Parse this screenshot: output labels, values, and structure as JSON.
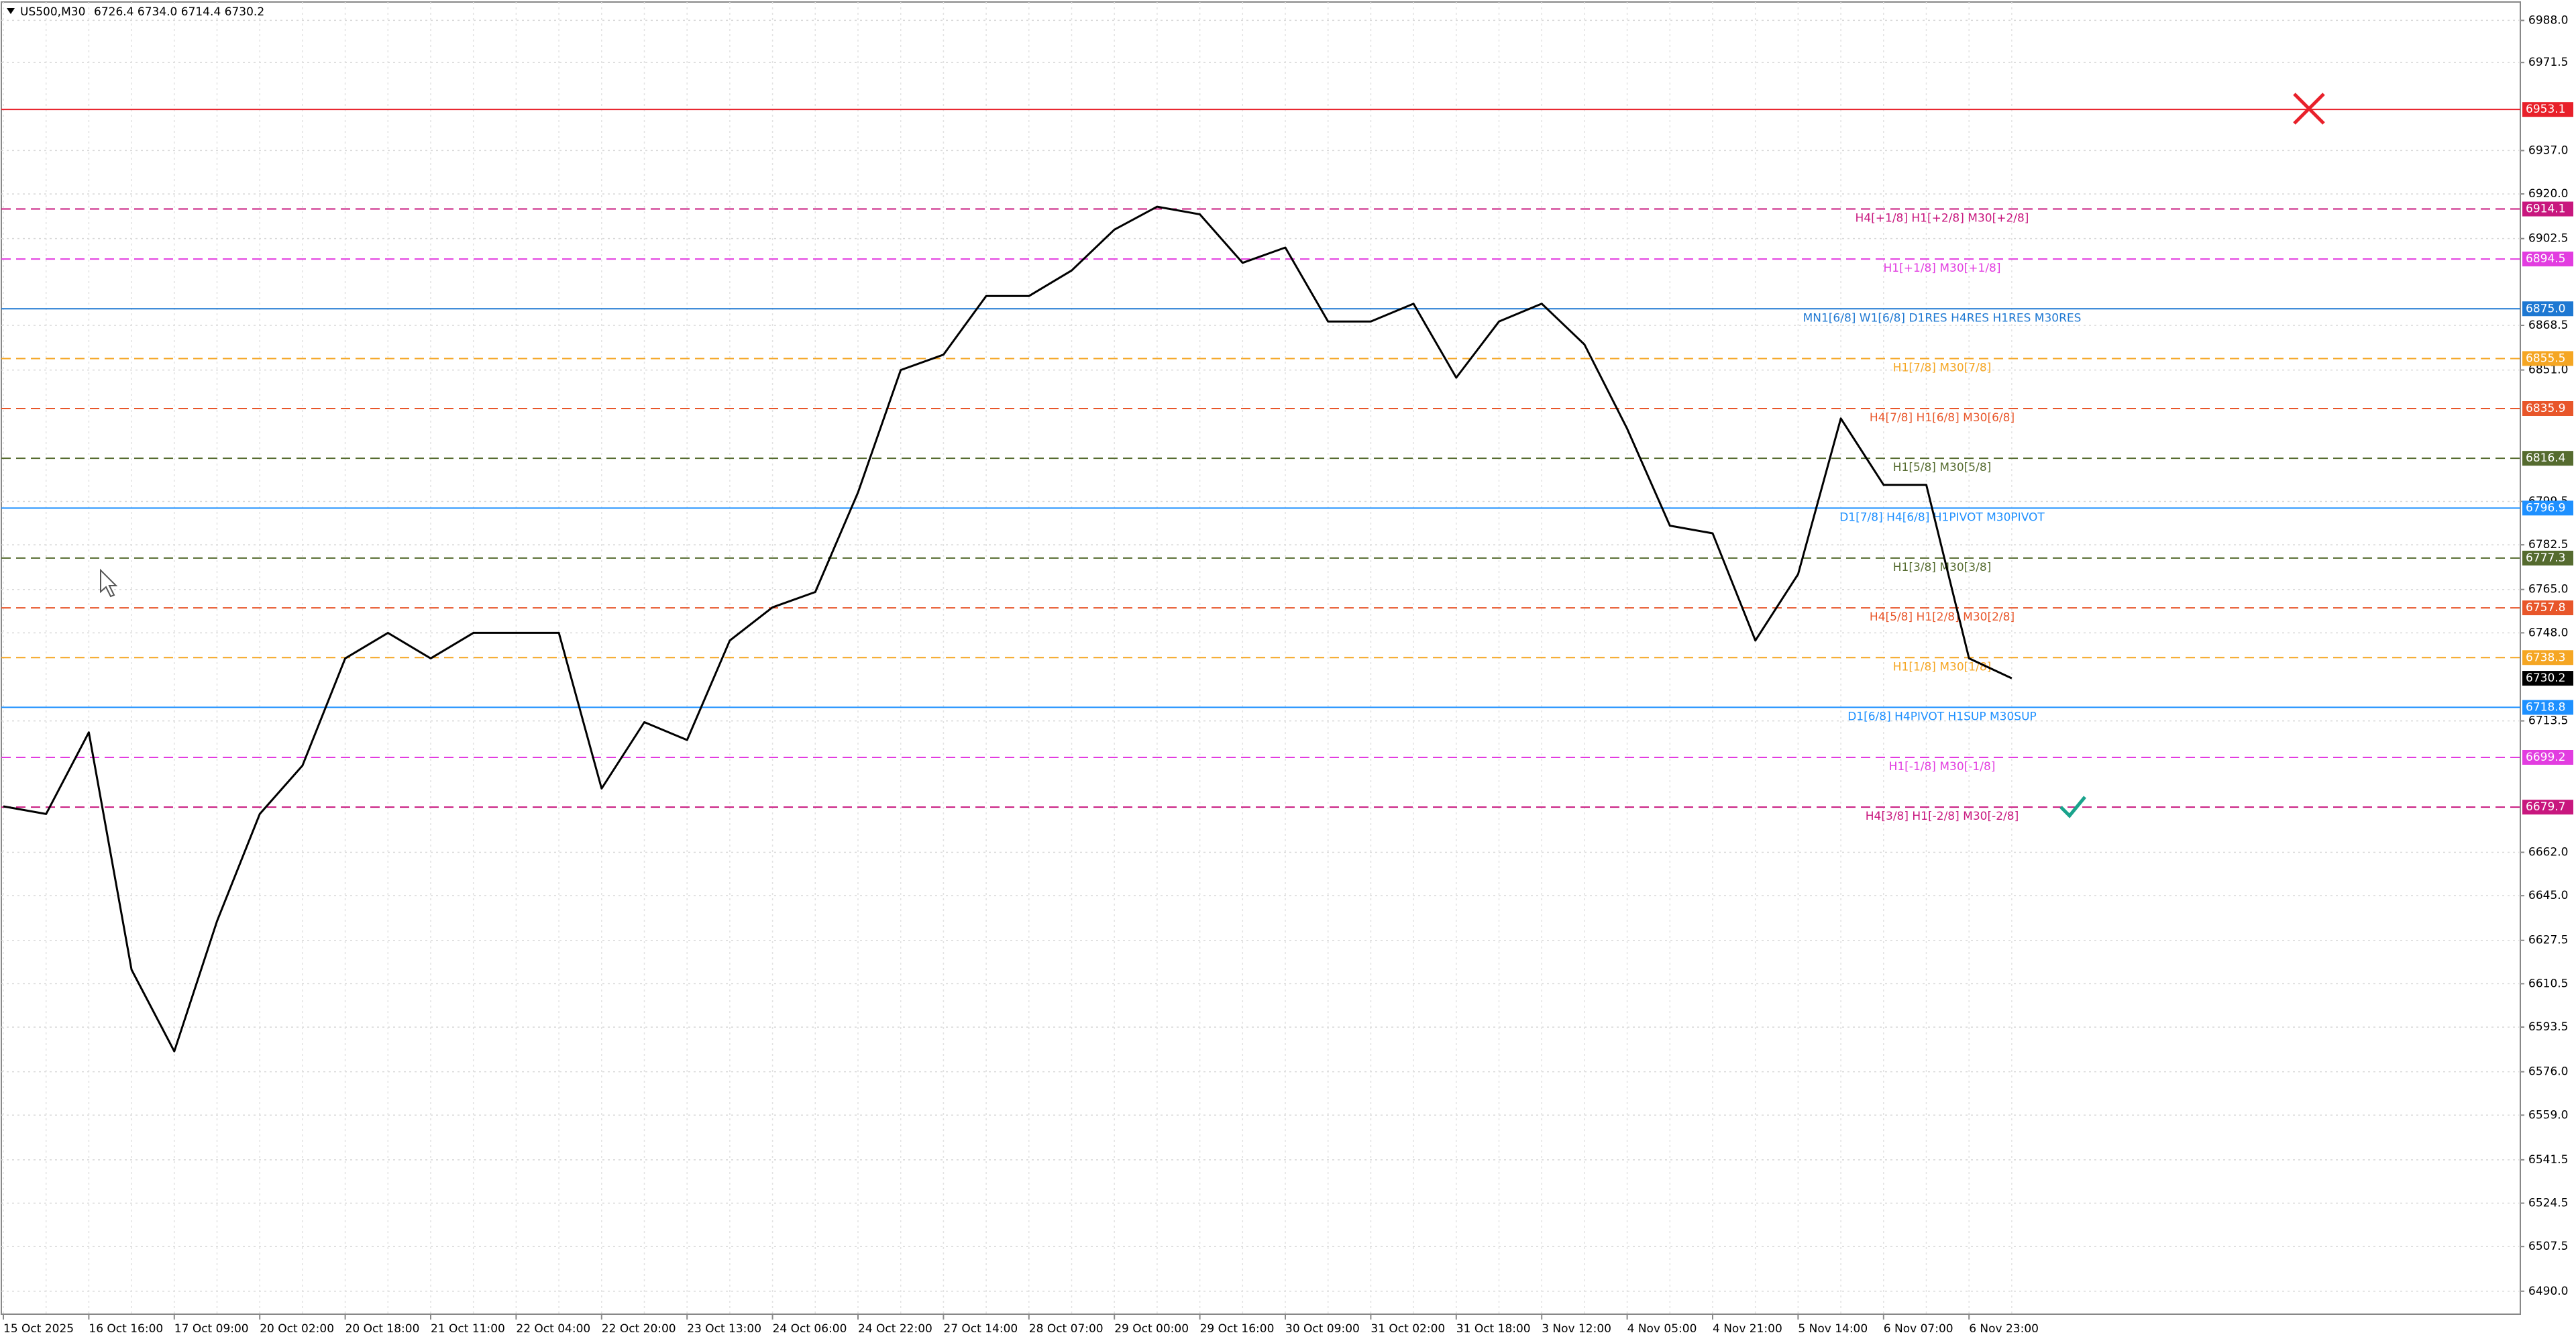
{
  "chart_data": {
    "type": "line",
    "title": "US500,M30",
    "ohlc_text": "6726.4 6734.0 6714.4 6730.2",
    "categories": [
      "15 Oct 2025",
      null,
      "16 Oct 16:00",
      null,
      "17 Oct 09:00",
      null,
      "20 Oct 02:00",
      null,
      "20 Oct 18:00",
      null,
      "21 Oct 11:00",
      null,
      "22 Oct 04:00",
      null,
      "22 Oct 20:00",
      null,
      "23 Oct 13:00",
      null,
      "24 Oct 06:00",
      null,
      "24 Oct 22:00",
      null,
      "27 Oct 14:00",
      null,
      "28 Oct 07:00",
      null,
      "29 Oct 00:00",
      null,
      "29 Oct 16:00",
      null,
      "30 Oct 09:00",
      null,
      "31 Oct 02:00",
      null,
      "31 Oct 18:00",
      null,
      "3 Nov 12:00",
      null,
      "4 Nov 05:00",
      null,
      "4 Nov 21:00",
      null,
      "5 Nov 14:00",
      null,
      "6 Nov 07:00",
      null,
      "6 Nov 23:00",
      null
    ],
    "series": [
      {
        "name": "US500",
        "color": "#000000",
        "values": [
          6680,
          6677,
          6709,
          6616,
          6584,
          6635,
          6677,
          6696,
          6738,
          6748,
          6738,
          6748,
          6748,
          6748,
          6687,
          6713,
          6706,
          6745,
          6758,
          6764,
          6803,
          6851,
          6857,
          6880,
          6880,
          6890,
          6906,
          6915,
          6912,
          6893,
          6899,
          6870,
          6870,
          6877,
          6848,
          6870,
          6877,
          6861,
          6828,
          6790,
          6787,
          6745,
          6771,
          6832,
          6806,
          6806,
          6738,
          6730.2
        ]
      }
    ],
    "ylim": [
      6481,
      6996
    ],
    "yticks": [
      {
        "value": 6988,
        "label": "6988.0"
      },
      {
        "value": 6971.5,
        "label": "6971.5"
      },
      {
        "value": 6937,
        "label": "6937.0"
      },
      {
        "value": 6920,
        "label": "6920.0"
      },
      {
        "value": 6902.5,
        "label": "6902.5"
      },
      {
        "value": 6868.5,
        "label": "6868.5"
      },
      {
        "value": 6851,
        "label": "6851.0"
      },
      {
        "value": 6799.5,
        "label": "6799.5"
      },
      {
        "value": 6782.5,
        "label": "6782.5"
      },
      {
        "value": 6765,
        "label": "6765.0"
      },
      {
        "value": 6748,
        "label": "6748.0"
      },
      {
        "value": 6713.5,
        "label": "6713.5"
      },
      {
        "value": 6662,
        "label": "6662.0"
      },
      {
        "value": 6645,
        "label": "6645.0"
      },
      {
        "value": 6627.5,
        "label": "6627.5"
      },
      {
        "value": 6610.5,
        "label": "6610.5"
      },
      {
        "value": 6593.5,
        "label": "6593.5"
      },
      {
        "value": 6576,
        "label": "6576.0"
      },
      {
        "value": 6559,
        "label": "6559.0"
      },
      {
        "value": 6541.5,
        "label": "6541.5"
      },
      {
        "value": 6524.5,
        "label": "6524.5"
      },
      {
        "value": 6507.5,
        "label": "6507.5"
      },
      {
        "value": 6490,
        "label": "6490.0"
      }
    ],
    "grid": true,
    "levels": [
      {
        "price": 6953.1,
        "price_label": "6953.1",
        "color": "#e8202a",
        "dashed": false
      },
      {
        "price": 6914.1,
        "price_label": "6914.1",
        "color": "#c8177e",
        "dashed": true,
        "text": "H4[+1/8] H1[+2/8] M30[+2/8]"
      },
      {
        "price": 6894.5,
        "price_label": "6894.5",
        "color": "#e23de0",
        "dashed": true,
        "text": "H1[+1/8] M30[+1/8]"
      },
      {
        "price": 6875,
        "price_label": "6875.0",
        "color": "#1e78d2",
        "dashed": false,
        "text": "MN1[6/8] W1[6/8] D1RES H4RES H1RES M30RES"
      },
      {
        "price": 6855.5,
        "price_label": "6855.5",
        "color": "#f5a623",
        "dashed": true,
        "text": "H1[7/8] M30[7/8]"
      },
      {
        "price": 6835.9,
        "price_label": "6835.9",
        "color": "#e8562a",
        "dashed": true,
        "text": "H4[7/8] H1[6/8] M30[6/8]"
      },
      {
        "price": 6816.4,
        "price_label": "6816.4",
        "color": "#556b2f",
        "dashed": true,
        "text": "H1[5/8] M30[5/8]"
      },
      {
        "price": 6796.9,
        "price_label": "6796.9",
        "color": "#1e90ff",
        "dashed": false,
        "text": "D1[7/8] H4[6/8] H1PIVOT M30PIVOT"
      },
      {
        "price": 6777.3,
        "price_label": "6777.3",
        "color": "#556b2f",
        "dashed": true,
        "text": "H1[3/8] M30[3/8]"
      },
      {
        "price": 6757.8,
        "price_label": "6757.8",
        "color": "#e8562a",
        "dashed": true,
        "text": "H4[5/8] H1[2/8] M30[2/8]"
      },
      {
        "price": 6738.3,
        "price_label": "6738.3",
        "color": "#f5a623",
        "dashed": true,
        "text": "H1[1/8] M30[1/8]"
      },
      {
        "price": 6718.8,
        "price_label": "6718.8",
        "color": "#1e90ff",
        "dashed": false,
        "text": "D1[6/8] H4PIVOT H1SUP M30SUP"
      },
      {
        "price": 6699.2,
        "price_label": "6699.2",
        "color": "#e23de0",
        "dashed": true,
        "text": "H1[-1/8] M30[-1/8]"
      },
      {
        "price": 6679.7,
        "price_label": "6679.7",
        "color": "#c8177e",
        "dashed": true,
        "text": "H4[3/8] H1[-2/8] M30[-2/8]"
      }
    ],
    "last_price": 6730.2
  }
}
